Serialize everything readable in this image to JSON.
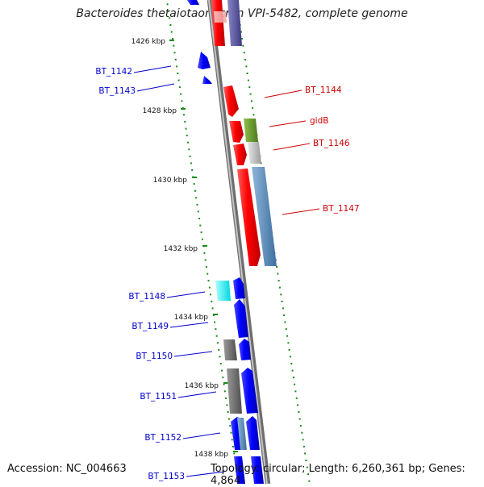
{
  "title": "Bacteroides thetaiotaomicron VPI-5482, complete genome",
  "footer": {
    "accession": "Accession: NC_004663",
    "topology": "Topology: circular; Length: 6,260,361 bp; Genes: 4,864"
  },
  "ticks": [
    {
      "label": "1426 kbp"
    },
    {
      "label": "1428 kbp"
    },
    {
      "label": "1430 kbp"
    },
    {
      "label": "1432 kbp"
    },
    {
      "label": "1434 kbp"
    },
    {
      "label": "1436 kbp"
    },
    {
      "label": "1438 kbp"
    }
  ],
  "genes": [
    {
      "name": "BT_1142",
      "strand": "reverse",
      "color": "#0000cc"
    },
    {
      "name": "BT_1143",
      "strand": "reverse",
      "color": "#0000cc"
    },
    {
      "name": "BT_1144",
      "strand": "forward",
      "color": "#cc0000"
    },
    {
      "name": "gidB",
      "strand": "forward",
      "color": "#cc0000"
    },
    {
      "name": "BT_1146",
      "strand": "forward",
      "color": "#cc0000"
    },
    {
      "name": "BT_1147",
      "strand": "forward",
      "color": "#cc0000"
    },
    {
      "name": "BT_1148",
      "strand": "reverse",
      "color": "#0000cc"
    },
    {
      "name": "BT_1149",
      "strand": "reverse",
      "color": "#0000cc"
    },
    {
      "name": "BT_1150",
      "strand": "reverse",
      "color": "#0000cc"
    },
    {
      "name": "BT_1151",
      "strand": "reverse",
      "color": "#0000cc"
    },
    {
      "name": "BT_1152",
      "strand": "reverse",
      "color": "#0000cc"
    },
    {
      "name": "BT_1153",
      "strand": "reverse",
      "color": "#0000cc"
    }
  ],
  "colors": {
    "forward_gene": "#ff0000",
    "reverse_gene": "#0000ff",
    "backbone": "#888888",
    "tick": "#1a8a1a",
    "forward_label": "#cc0000",
    "reverse_label": "#0000cc"
  }
}
